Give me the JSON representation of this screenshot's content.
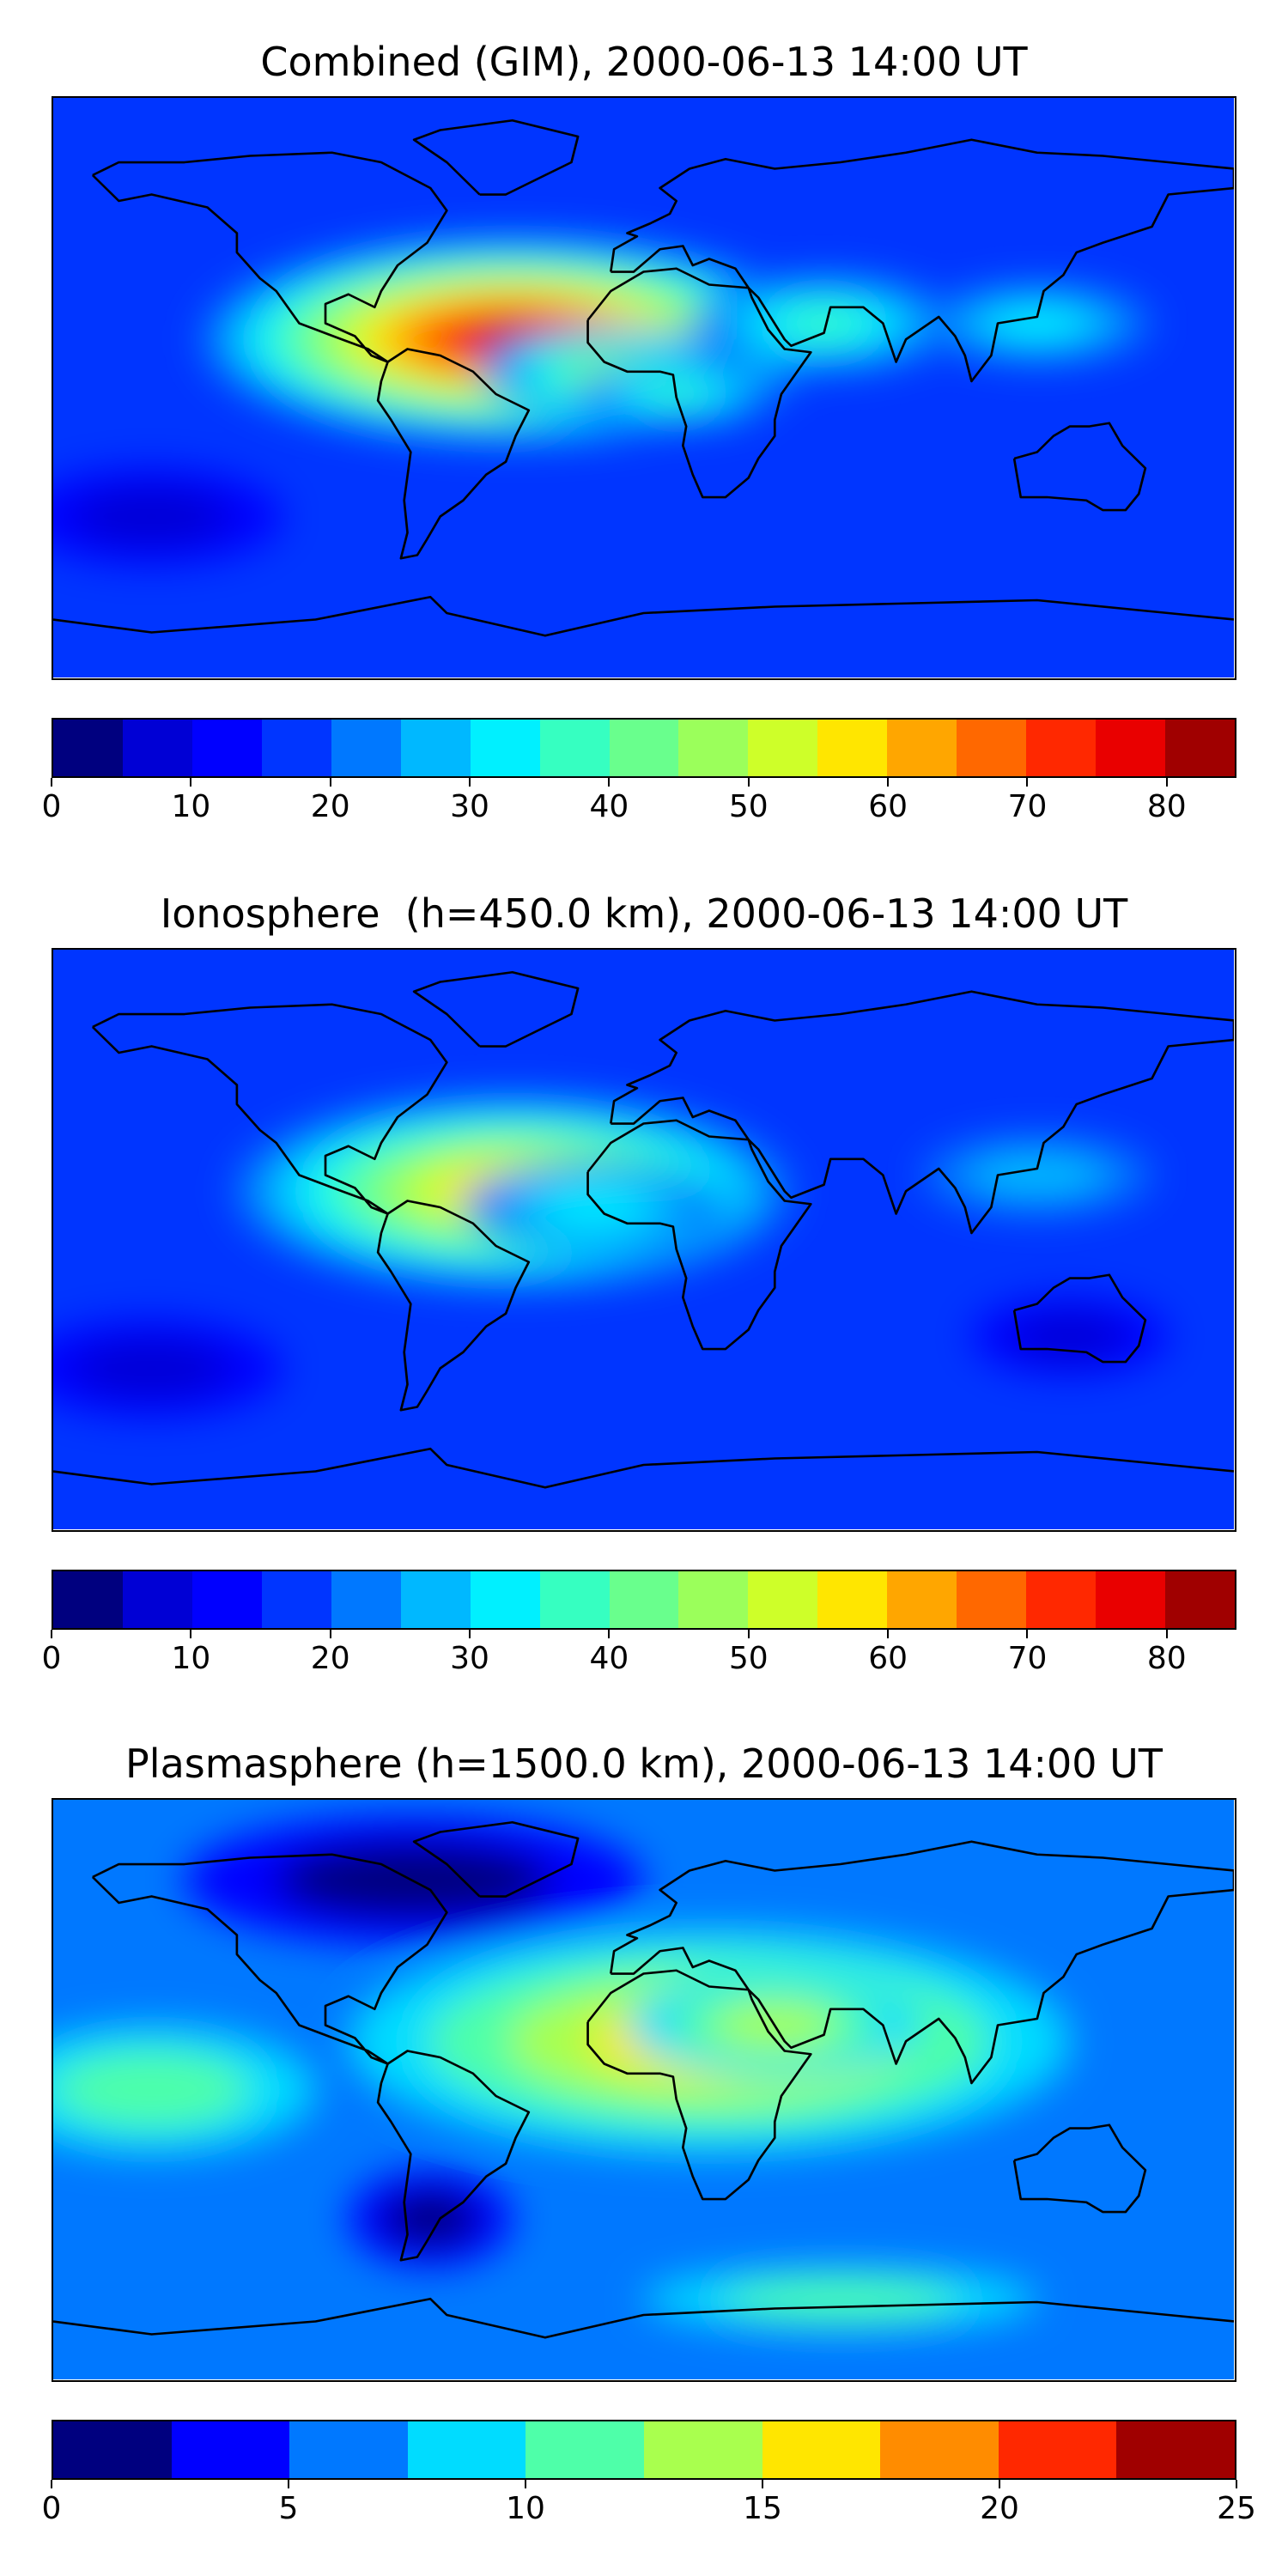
{
  "panels": [
    {
      "title": "Combined (GIM), 2000-06-13 14:00 UT",
      "colorbar": {
        "min": 0,
        "max": 85,
        "step": 5,
        "ticks": [
          "0",
          "10",
          "20",
          "30",
          "40",
          "50",
          "60",
          "70",
          "80"
        ],
        "tick_values": [
          0,
          10,
          20,
          30,
          40,
          50,
          60,
          70,
          80
        ]
      },
      "field": {
        "background_level": 3,
        "blobs": [
          {
            "lon": -40,
            "lat": 15,
            "amp": 13,
            "sx": 95,
            "sy": 32
          },
          {
            "lon": -10,
            "lat": 5,
            "amp": 6,
            "sx": 40,
            "sy": 14
          },
          {
            "lon": 10,
            "lat": -2,
            "amp": 4,
            "sx": 30,
            "sy": 10
          },
          {
            "lon": 55,
            "lat": 20,
            "amp": 4,
            "sx": 40,
            "sy": 15
          },
          {
            "lon": 120,
            "lat": 20,
            "amp": 3,
            "sx": 35,
            "sy": 12
          },
          {
            "lon": -150,
            "lat": -40,
            "amp": -2,
            "sx": 40,
            "sy": 15
          }
        ]
      }
    },
    {
      "title": "Ionosphere  (h=450.0 km), 2000-06-13 14:00 UT",
      "colorbar": {
        "min": 0,
        "max": 85,
        "step": 5,
        "ticks": [
          "0",
          "10",
          "20",
          "30",
          "40",
          "50",
          "60",
          "70",
          "80"
        ],
        "tick_values": [
          0,
          10,
          20,
          30,
          40,
          50,
          60,
          70,
          80
        ]
      },
      "field": {
        "background_level": 3,
        "blobs": [
          {
            "lon": -40,
            "lat": 15,
            "amp": 9,
            "sx": 85,
            "sy": 30
          },
          {
            "lon": -15,
            "lat": 10,
            "amp": 3,
            "sx": 40,
            "sy": 14
          },
          {
            "lon": 120,
            "lat": 20,
            "amp": 2,
            "sx": 35,
            "sy": 12
          },
          {
            "lon": -150,
            "lat": -40,
            "amp": -2,
            "sx": 40,
            "sy": 15
          },
          {
            "lon": 130,
            "lat": -30,
            "amp": -2,
            "sx": 30,
            "sy": 12
          }
        ]
      }
    },
    {
      "title": "Plasmasphere (h=1500.0 km), 2000-06-13 14:00 UT",
      "colorbar": {
        "min": 0,
        "max": 25,
        "step": 2.5,
        "ticks": [
          "0",
          "5",
          "10",
          "15",
          "20",
          "25"
        ],
        "tick_values": [
          0,
          5,
          10,
          15,
          20,
          25
        ]
      },
      "field": {
        "background_level": 2,
        "blobs": [
          {
            "lon": 20,
            "lat": 15,
            "amp": 4,
            "sx": 110,
            "sy": 35
          },
          {
            "lon": 40,
            "lat": 20,
            "amp": 3,
            "sx": 45,
            "sy": 16
          },
          {
            "lon": -150,
            "lat": 0,
            "amp": 2,
            "sx": 50,
            "sy": 20
          },
          {
            "lon": -70,
            "lat": 65,
            "amp": -2,
            "sx": 70,
            "sy": 20
          },
          {
            "lon": -65,
            "lat": -40,
            "amp": -2,
            "sx": 25,
            "sy": 15
          },
          {
            "lon": 60,
            "lat": -65,
            "amp": 2,
            "sx": 60,
            "sy": 10
          }
        ]
      }
    }
  ],
  "palette": {
    "jet17": [
      "#00007f",
      "#0000d5",
      "#0000ff",
      "#0035ff",
      "#0078ff",
      "#00b8ff",
      "#00f0ff",
      "#36ffc1",
      "#69ff8d",
      "#9bff5b",
      "#ceff29",
      "#ffe600",
      "#ffa600",
      "#ff6800",
      "#ff2800",
      "#e90000",
      "#a00000"
    ],
    "jet10": [
      "#00007f",
      "#0000ff",
      "#0078ff",
      "#00dcff",
      "#4effa9",
      "#a9ff4e",
      "#ffe600",
      "#ff8c00",
      "#ff2800",
      "#a00000"
    ]
  },
  "map": {
    "coastline_color": "#000000"
  }
}
